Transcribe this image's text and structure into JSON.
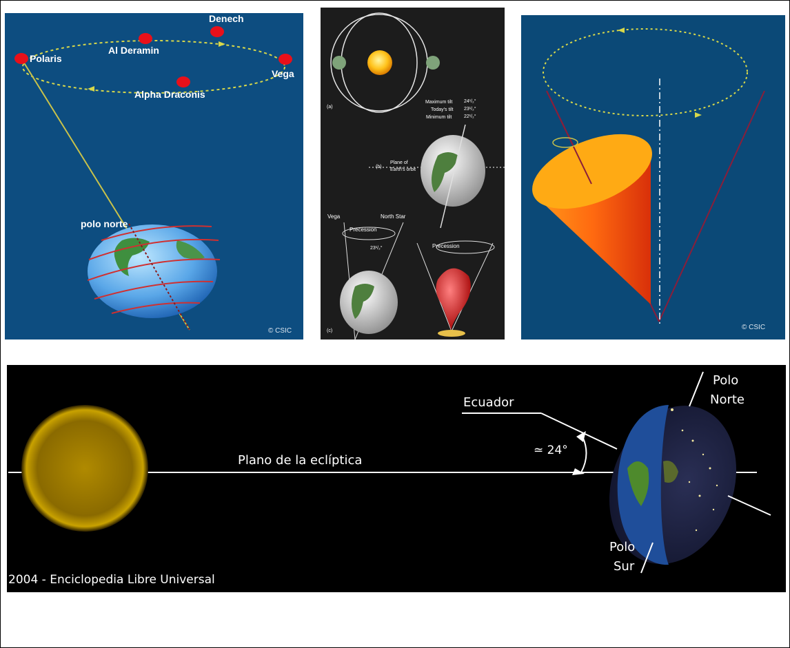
{
  "panel1": {
    "stars": [
      "Denech",
      "Al Deramin",
      "Polaris",
      "Vega",
      "Alpha Draconis"
    ],
    "pole_label": "polo norte",
    "credit": "© CSIC"
  },
  "panel2": {
    "tilt_labels": [
      "Maximum tilt",
      "Today's tilt",
      "Minimum tilt"
    ],
    "tilt_values": [
      "24¹/₂°",
      "23¹/₂°",
      "22¹/₂°"
    ],
    "orbit_label_1": "Plane of",
    "orbit_label_2": "Earth's orbit",
    "sub_a": "(a)",
    "sub_b": "(b)",
    "sub_c": "(c)",
    "vega": "Vega",
    "north_star": "North Star",
    "precession_1": "Precession",
    "precession_2": "Precession",
    "angle": "23¹/₂°"
  },
  "panel3": {
    "credit": "© CSIC"
  },
  "panel4": {
    "ecuador": "Ecuador",
    "polo_norte_1": "Polo",
    "polo_norte_2": "Norte",
    "polo_sur_1": "Polo",
    "polo_sur_2": "Sur",
    "angle": "≃ 24°",
    "ecliptic": "Plano de la eclíptica",
    "credit": "2004 - Enciclopedia Libre Universal"
  },
  "colors": {
    "panel1_bg": "#0d4d80",
    "panel3_bg": "#0b4977",
    "star_red": "#e8101a",
    "orbit_yellow": "#d8d84a",
    "cone_orange": "#ff7a10"
  }
}
